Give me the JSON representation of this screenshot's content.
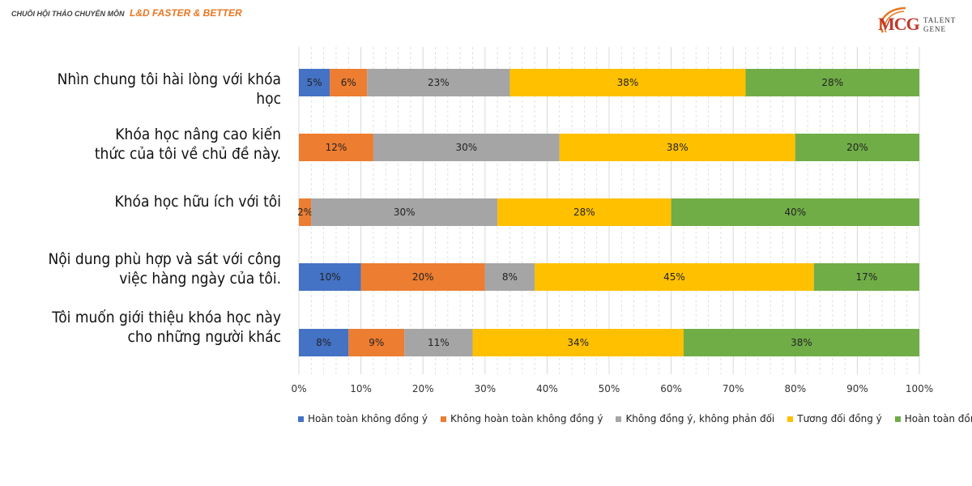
{
  "header": {
    "series_label": "CHUỖI HỘI THẢO CHUYÊN MÔN",
    "brand_label": "L&D FASTER & BETTER"
  },
  "logo": {
    "mark": "MCG",
    "sub1": "TALENT",
    "sub2": "GENE"
  },
  "colors": {
    "series": [
      "#4472c4",
      "#ed7d31",
      "#a5a5a5",
      "#ffc000",
      "#70ad47"
    ],
    "grid": "#d9d9d9",
    "axis_text": "#333333"
  },
  "chart_data": {
    "type": "bar",
    "orientation": "horizontal",
    "stacked": "percent",
    "categories": [
      [
        "Nhìn chung tôi hài lòng với khóa",
        "học"
      ],
      [
        "Khóa học nâng cao kiến",
        "thức của tôi về chủ đề này."
      ],
      [
        "Khóa học hữu ích với tôi"
      ],
      [
        "Nội dung phù hợp và sát  với công",
        "việc hàng ngày của tôi."
      ],
      [
        "Tôi muốn giới thiệu khóa học này",
        "cho những người khác"
      ]
    ],
    "series": [
      {
        "name": "Hoàn toàn không đồng ý",
        "values": [
          5,
          0,
          0,
          10,
          8
        ]
      },
      {
        "name": "Không hoàn toàn không đồng ý",
        "values": [
          6,
          12,
          2,
          20,
          9
        ]
      },
      {
        "name": "Không đồng ý, không phản đối",
        "values": [
          23,
          30,
          30,
          8,
          11
        ]
      },
      {
        "name": "Tương đối đồng ý",
        "values": [
          38,
          38,
          28,
          45,
          34
        ]
      },
      {
        "name": "Hoàn toàn đồng ý",
        "values": [
          28,
          20,
          40,
          17,
          38
        ]
      }
    ],
    "xlim": [
      0,
      100
    ],
    "xticks": [
      "0%",
      "10%",
      "20%",
      "30%",
      "40%",
      "50%",
      "60%",
      "70%",
      "80%",
      "90%",
      "100%"
    ],
    "value_suffix": "%",
    "grid": true,
    "legend": "bottom"
  }
}
